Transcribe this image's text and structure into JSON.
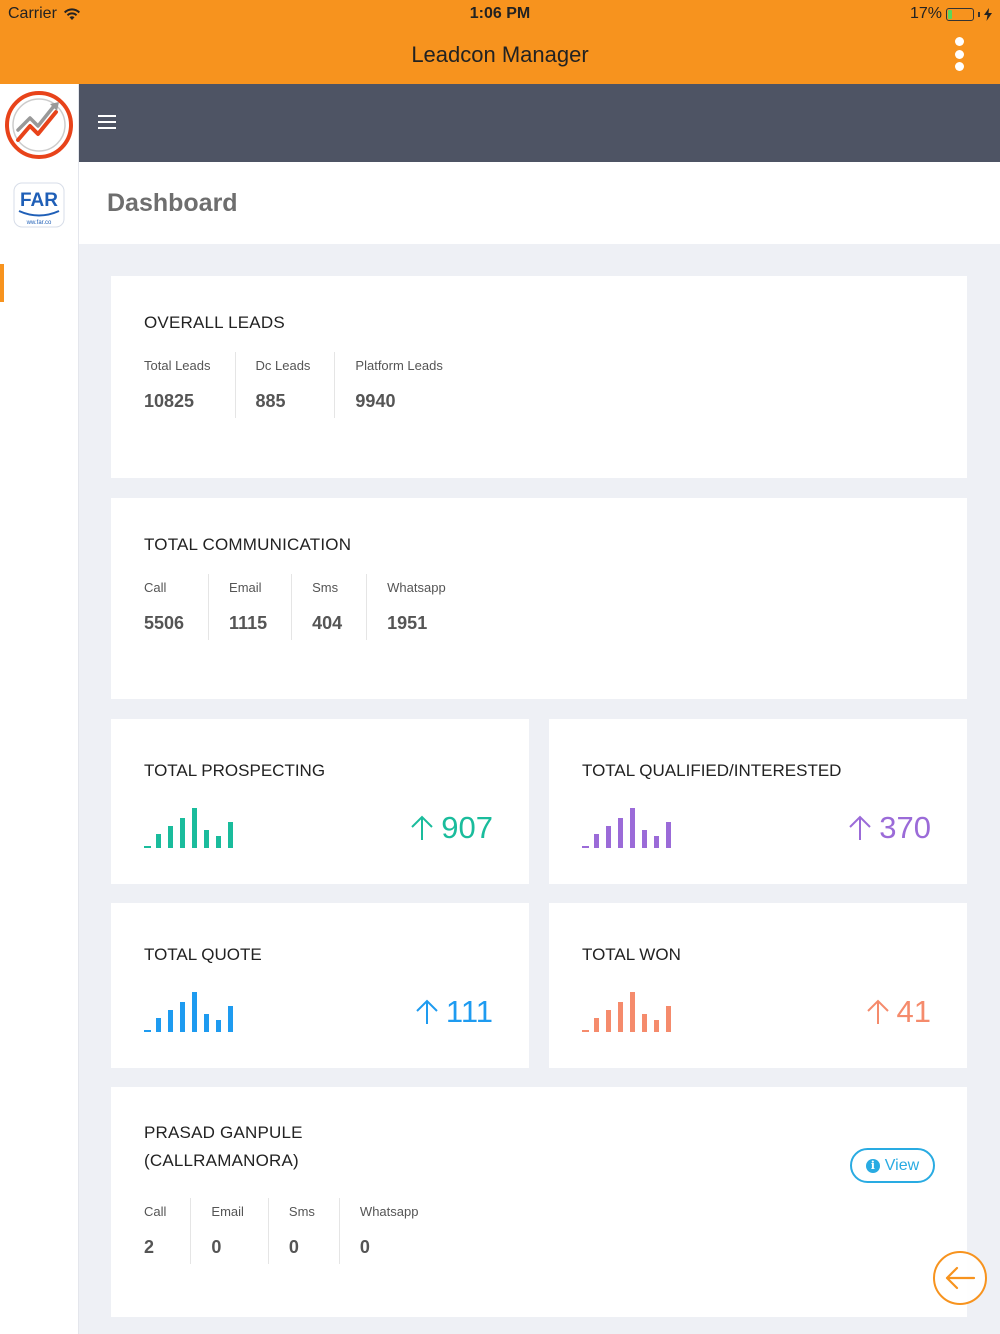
{
  "status_bar": {
    "carrier": "Carrier",
    "time": "1:06 PM",
    "battery": "17%"
  },
  "app": {
    "title": "Leadcon Manager"
  },
  "page": {
    "title": "Dashboard"
  },
  "overall_leads": {
    "title": "OVERALL LEADS",
    "stats": [
      {
        "label": "Total Leads",
        "value": "10825"
      },
      {
        "label": "Dc Leads",
        "value": "885"
      },
      {
        "label": "Platform Leads",
        "value": "9940"
      }
    ]
  },
  "total_communication": {
    "title": "TOTAL COMMUNICATION",
    "stats": [
      {
        "label": "Call",
        "value": "5506"
      },
      {
        "label": "Email",
        "value": "1115"
      },
      {
        "label": "Sms",
        "value": "404"
      },
      {
        "label": "Whatsapp",
        "value": "1951"
      }
    ]
  },
  "prospecting": {
    "title": "TOTAL PROSPECTING",
    "value": "907",
    "color": "#1abc9c"
  },
  "qualified": {
    "title": "TOTAL QUALIFIED/INTERESTED",
    "value": "370",
    "color": "#9b6bd8"
  },
  "quote": {
    "title": "TOTAL QUOTE",
    "value": "111",
    "color": "#1e9bf0"
  },
  "won": {
    "title": "TOTAL WON",
    "value": "41",
    "color": "#f58b6c"
  },
  "user_card": {
    "name_line1": "PRASAD GANPULE",
    "name_line2": "(CALLRAMANORA)",
    "view_label": "View",
    "stats": [
      {
        "label": "Call",
        "value": "2"
      },
      {
        "label": "Email",
        "value": "0"
      },
      {
        "label": "Sms",
        "value": "0"
      },
      {
        "label": "Whatsapp",
        "value": "0"
      }
    ]
  },
  "logo": {
    "brand_text": "FAR",
    "brand_subtext": "ww.far.co"
  },
  "icons": {
    "wifi": "wifi-icon",
    "battery": "battery-icon",
    "menu": "kebab-menu-icon",
    "hamburger": "hamburger-icon",
    "trend": "arrow-up-icon",
    "info": "info-icon",
    "back": "arrow-left-icon"
  },
  "colors": {
    "accent": "#f7931e",
    "header_dark": "#4e5464",
    "link": "#29abe2"
  }
}
